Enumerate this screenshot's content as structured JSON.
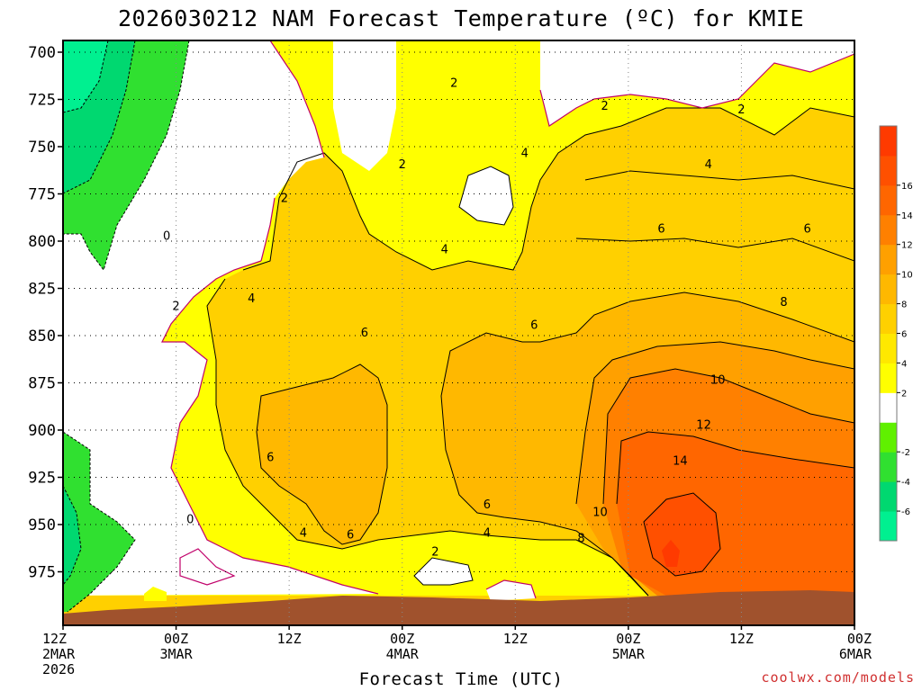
{
  "chart_data": {
    "type": "heatmap",
    "title": "2026030212 NAM Forecast Temperature (ºC) for KMIE",
    "xlabel": "Forecast Time (UTC)",
    "ylabel": "",
    "credit": "coolwx.com/models",
    "y_ticks": [
      "700",
      "725",
      "750",
      "775",
      "800",
      "825",
      "850",
      "875",
      "900",
      "925",
      "950",
      "975"
    ],
    "ylim": [
      700,
      990
    ],
    "y_reversed": true,
    "x_ticks": [
      {
        "hour": 0,
        "lines": [
          "12Z",
          "2MAR",
          "2026"
        ]
      },
      {
        "hour": 12,
        "lines": [
          "00Z",
          "3MAR"
        ]
      },
      {
        "hour": 24,
        "lines": [
          "12Z"
        ]
      },
      {
        "hour": 36,
        "lines": [
          "00Z",
          "4MAR"
        ]
      },
      {
        "hour": 48,
        "lines": [
          "12Z"
        ]
      },
      {
        "hour": 60,
        "lines": [
          "00Z",
          "5MAR"
        ]
      },
      {
        "hour": 72,
        "lines": [
          "12Z"
        ]
      },
      {
        "hour": 84,
        "lines": [
          "00Z",
          "6MAR"
        ]
      }
    ],
    "xlim": [
      0,
      84
    ],
    "grid": true,
    "colorbar": {
      "levels": [
        "-6",
        "-4",
        "-2",
        "2",
        "4",
        "6",
        "8",
        "10",
        "12",
        "14",
        "16"
      ],
      "colors": [
        "#00f090",
        "#00d870",
        "#30e030",
        "#60f000",
        "#ffffff",
        "#ffff00",
        "#ffe800",
        "#ffd000",
        "#ffb800",
        "#ffa000",
        "#ff8000",
        "#ff6600",
        "#ff5000",
        "#ff3a00"
      ]
    },
    "contour_labels": [
      {
        "text": "2",
        "hour": 41.5,
        "p": 716
      },
      {
        "text": "2",
        "hour": 57.5,
        "p": 728
      },
      {
        "text": "2",
        "hour": 72,
        "p": 730
      },
      {
        "text": "2",
        "hour": 36,
        "p": 759
      },
      {
        "text": "4",
        "hour": 49,
        "p": 753
      },
      {
        "text": "4",
        "hour": 68.5,
        "p": 759
      },
      {
        "text": "2",
        "hour": 23.5,
        "p": 777
      },
      {
        "text": "6",
        "hour": 63.5,
        "p": 793
      },
      {
        "text": "6",
        "hour": 79,
        "p": 793
      },
      {
        "text": "0",
        "hour": 11,
        "p": 797
      },
      {
        "text": "4",
        "hour": 40.5,
        "p": 804
      },
      {
        "text": "4",
        "hour": 20,
        "p": 830
      },
      {
        "text": "8",
        "hour": 76.5,
        "p": 832
      },
      {
        "text": "2",
        "hour": 12,
        "p": 834
      },
      {
        "text": "6",
        "hour": 50,
        "p": 844
      },
      {
        "text": "6",
        "hour": 32,
        "p": 848
      },
      {
        "text": "10",
        "hour": 69.5,
        "p": 873
      },
      {
        "text": "12",
        "hour": 68,
        "p": 897
      },
      {
        "text": "6",
        "hour": 22,
        "p": 914
      },
      {
        "text": "14",
        "hour": 65.5,
        "p": 916
      },
      {
        "text": "6",
        "hour": 45,
        "p": 939
      },
      {
        "text": "10",
        "hour": 57,
        "p": 943
      },
      {
        "text": "0",
        "hour": 13.5,
        "p": 947
      },
      {
        "text": "4",
        "hour": 25.5,
        "p": 954
      },
      {
        "text": "6",
        "hour": 30.5,
        "p": 955
      },
      {
        "text": "4",
        "hour": 45,
        "p": 954
      },
      {
        "text": "8",
        "hour": 55,
        "p": 957
      },
      {
        "text": "2",
        "hour": 39.5,
        "p": 964
      }
    ]
  }
}
